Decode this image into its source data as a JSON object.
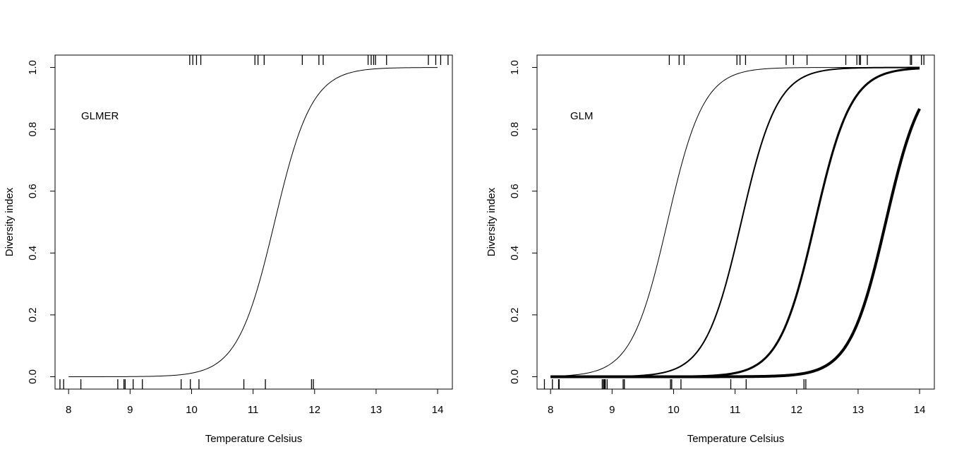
{
  "chart_data": [
    {
      "type": "line",
      "annotation": "GLMER",
      "xlabel": "Temperature Celsius",
      "ylabel": "Diversity index",
      "xlim": [
        7.78,
        14.24
      ],
      "ylim": [
        -0.04,
        1.04
      ],
      "xticks": [
        "8",
        "9",
        "10",
        "11",
        "12",
        "13",
        "14"
      ],
      "yticks": [
        "0.0",
        "0.2",
        "0.4",
        "0.6",
        "0.8",
        "1.0"
      ],
      "grid": false,
      "legend": "none",
      "series": [
        {
          "midpoint": 11.35,
          "slope": 3.3,
          "x_range": [
            8.0,
            14.0
          ],
          "line_width": 1
        }
      ],
      "rug_bottom": [
        7.86,
        7.92,
        8.2,
        8.8,
        8.9,
        8.92,
        9.05,
        9.2,
        9.83,
        9.98,
        10.12,
        10.85,
        11.2,
        11.95,
        11.98
      ],
      "rug_top": [
        9.97,
        10.02,
        10.08,
        10.15,
        11.03,
        11.08,
        11.18,
        11.8,
        12.07,
        12.14,
        12.87,
        12.92,
        12.96,
        12.99,
        13.17,
        13.85,
        13.97,
        14.05,
        14.17
      ],
      "curve_sample": {
        "x": [
          8,
          9,
          10,
          10.5,
          11,
          11.35,
          11.5,
          12,
          12.5,
          13,
          14
        ],
        "y": [
          0.0,
          0.0,
          0.01,
          0.06,
          0.24,
          0.5,
          0.62,
          0.9,
          0.98,
          1.0,
          1.0
        ]
      }
    },
    {
      "type": "line",
      "annotation": "GLM",
      "xlabel": "Temperature Celsius",
      "ylabel": "Diversity index",
      "xlim": [
        7.78,
        14.24
      ],
      "ylim": [
        -0.04,
        1.04
      ],
      "xticks": [
        "8",
        "9",
        "10",
        "11",
        "12",
        "13",
        "14"
      ],
      "yticks": [
        "0.0",
        "0.2",
        "0.4",
        "0.6",
        "0.8",
        "1.0"
      ],
      "grid": false,
      "legend": "none",
      "series": [
        {
          "midpoint": 9.9,
          "slope": 3.4,
          "x_range": [
            8.0,
            14.0
          ],
          "line_width": 1
        },
        {
          "midpoint": 11.1,
          "slope": 3.4,
          "x_range": [
            8.0,
            14.0
          ],
          "line_width": 2
        },
        {
          "midpoint": 12.3,
          "slope": 3.4,
          "x_range": [
            8.0,
            14.0
          ],
          "line_width": 3
        },
        {
          "midpoint": 13.45,
          "slope": 3.4,
          "x_range": [
            8.0,
            14.0
          ],
          "line_width": 4
        }
      ],
      "rug_bottom": [
        7.9,
        8.03,
        8.13,
        8.14,
        8.84,
        8.86,
        8.87,
        8.88,
        8.89,
        8.92,
        9.18,
        9.2,
        9.95,
        9.97,
        10.12,
        10.93,
        11.18,
        12.12,
        12.15
      ],
      "rug_top": [
        9.93,
        10.09,
        10.17,
        11.03,
        11.08,
        11.17,
        11.83,
        11.95,
        12.17,
        12.8,
        12.98,
        13.02,
        13.04,
        13.15,
        13.85,
        13.87,
        14.03,
        14.07
      ],
      "curve_sample": {
        "x": [
          8,
          9,
          10,
          11,
          12,
          13,
          14
        ],
        "y_series_1": [
          0.0,
          0.04,
          0.58,
          0.98,
          1.0,
          1.0,
          1.0
        ],
        "y_series_2": [
          0.0,
          0.0,
          0.02,
          0.42,
          0.96,
          1.0,
          1.0
        ],
        "y_series_3": [
          0.0,
          0.0,
          0.0,
          0.02,
          0.26,
          0.94,
          0.99
        ],
        "y_series_4": [
          0.0,
          0.0,
          0.0,
          0.0,
          0.01,
          0.18,
          0.87
        ]
      }
    }
  ]
}
